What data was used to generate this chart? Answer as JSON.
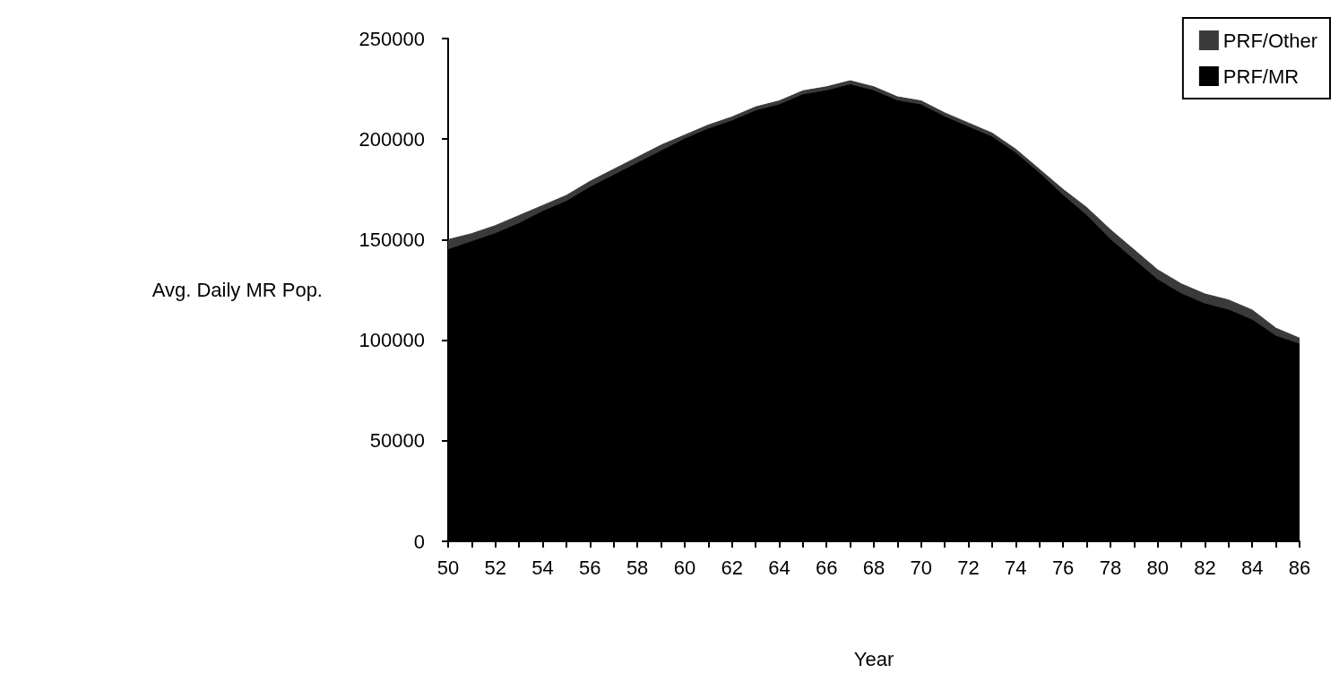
{
  "chart_data": {
    "type": "area",
    "stacked": true,
    "xlabel": "Year",
    "ylabel": "Avg. Daily MR Pop.",
    "x": [
      50,
      51,
      52,
      53,
      54,
      55,
      56,
      57,
      58,
      59,
      60,
      61,
      62,
      63,
      64,
      65,
      66,
      67,
      68,
      69,
      70,
      71,
      72,
      73,
      74,
      75,
      76,
      77,
      78,
      79,
      80,
      81,
      82,
      83,
      84,
      85,
      86
    ],
    "series": [
      {
        "name": "PRF/MR",
        "color": "#000000",
        "values": [
          145000,
          149000,
          153000,
          158000,
          164000,
          169000,
          176000,
          182000,
          188000,
          194000,
          200000,
          205000,
          209000,
          214000,
          217000,
          222000,
          224000,
          227000,
          224000,
          219000,
          217000,
          211000,
          206000,
          201000,
          193000,
          183000,
          172000,
          162000,
          150000,
          140000,
          130000,
          123000,
          118000,
          115000,
          110000,
          102000,
          98000
        ]
      },
      {
        "name": "PRF/Other",
        "color": "#3a3a3a",
        "values": [
          5000,
          4000,
          4000,
          4000,
          3000,
          3000,
          3000,
          3000,
          3000,
          3000,
          2000,
          2000,
          2000,
          2000,
          2000,
          2000,
          2000,
          2000,
          2000,
          2000,
          2000,
          2000,
          2000,
          2000,
          2000,
          2000,
          3000,
          4000,
          5000,
          5000,
          5000,
          5000,
          5000,
          5000,
          5000,
          4000,
          3000
        ]
      }
    ],
    "xlim": [
      50,
      86
    ],
    "xticks": [
      50,
      {
        "value": 51,
        "label": null
      },
      52,
      {
        "value": 53,
        "label": null
      },
      54,
      {
        "value": 55,
        "label": null
      },
      56,
      {
        "value": 57,
        "label": null
      },
      58,
      {
        "value": 59,
        "label": null
      },
      60,
      {
        "value": 61,
        "label": null
      },
      62,
      {
        "value": 63,
        "label": null
      },
      64,
      {
        "value": 65,
        "label": null
      },
      66,
      {
        "value": 67,
        "label": null
      },
      68,
      {
        "value": 69,
        "label": null
      },
      70,
      {
        "value": 71,
        "label": null
      },
      72,
      {
        "value": 73,
        "label": null
      },
      74,
      {
        "value": 75,
        "label": null
      },
      76,
      {
        "value": 77,
        "label": null
      },
      78,
      {
        "value": 79,
        "label": null
      },
      80,
      {
        "value": 81,
        "label": null
      },
      82,
      {
        "value": 83,
        "label": null
      },
      84,
      {
        "value": 85,
        "label": null
      },
      86
    ],
    "ylim": [
      0,
      250000
    ],
    "yticks": [
      0,
      50000,
      100000,
      150000,
      200000,
      250000
    ],
    "legend": "top right",
    "grid": false,
    "marker": "none"
  }
}
